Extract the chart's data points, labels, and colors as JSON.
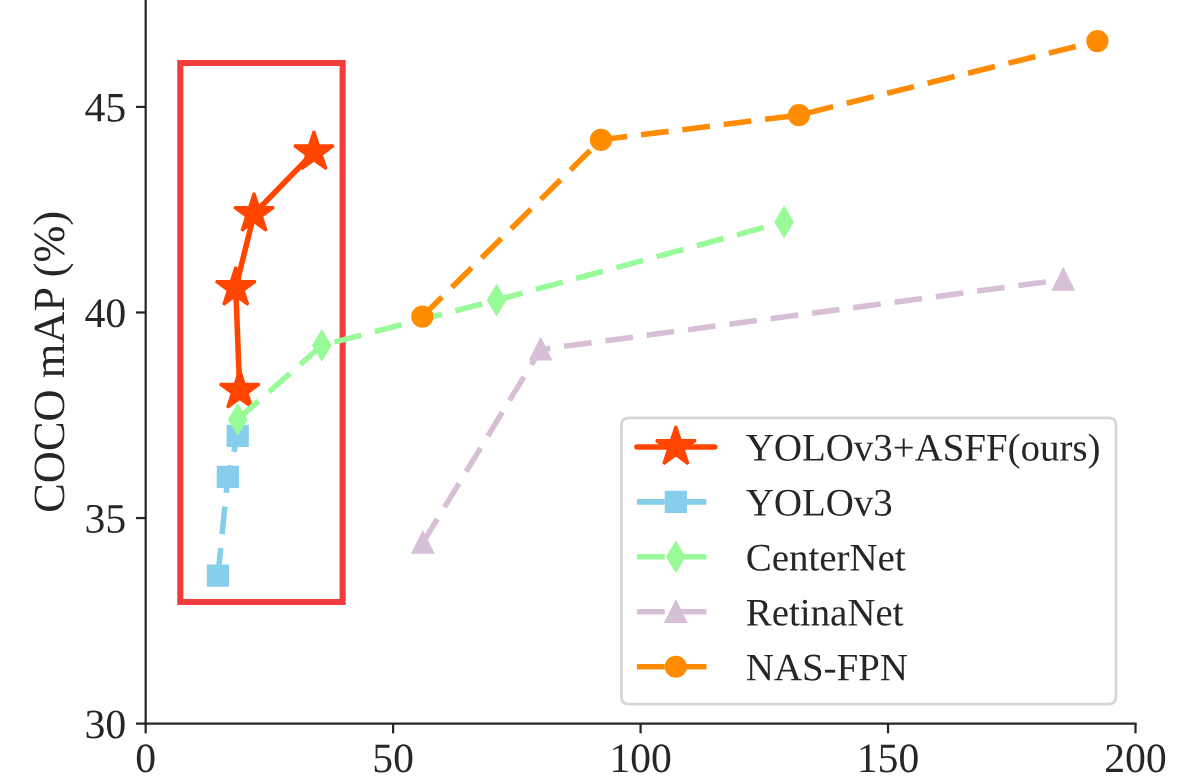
{
  "chart_data": {
    "type": "line",
    "ylabel": "COCO mAP (%)",
    "xlim": [
      0,
      200
    ],
    "xticks": [
      0,
      50,
      100,
      150,
      200
    ],
    "ylim": [
      30,
      47.6
    ],
    "yticks": [
      30,
      35,
      40,
      45
    ],
    "grid": false,
    "legend": "bottom right",
    "series": [
      {
        "name": "YOLOv3+ASFF(ours)",
        "color": "#ff4500",
        "marker": "star",
        "line_style": "solid",
        "x": [
          19,
          18.2,
          21.9,
          34
        ],
        "values": [
          38.1,
          40.6,
          42.4,
          43.9
        ]
      },
      {
        "name": "YOLOv3",
        "color": "#87ceeb",
        "marker": "square",
        "line_style": "dashed",
        "x": [
          14.6,
          16.6,
          18.6
        ],
        "values": [
          33.6,
          36.0,
          37.0
        ]
      },
      {
        "name": "CenterNet",
        "color": "#98fb98",
        "marker": "diamond",
        "line_style": "dashed",
        "x": [
          18.6,
          35.6,
          70.9,
          129
        ],
        "values": [
          37.4,
          39.2,
          40.3,
          42.2
        ]
      },
      {
        "name": "RetinaNet",
        "color": "#d8bfd8",
        "marker": "triangle",
        "line_style": "dashed",
        "x": [
          56,
          79.8,
          185.4
        ],
        "values": [
          34.4,
          39.1,
          40.8
        ]
      },
      {
        "name": "NAS-FPN",
        "color": "#ff8c00",
        "marker": "circle",
        "line_style": "dashed",
        "x": [
          55.9,
          92,
          132,
          192.3
        ],
        "values": [
          39.9,
          44.2,
          44.8,
          46.6
        ]
      }
    ]
  }
}
